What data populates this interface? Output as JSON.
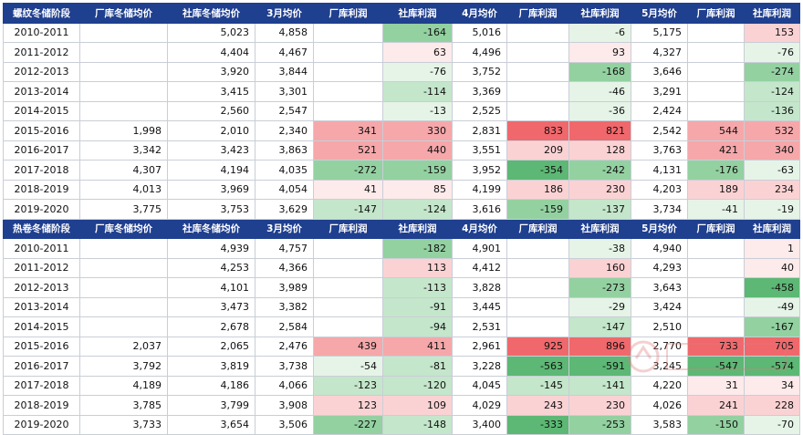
{
  "colors": {
    "header_bg": "#1f3f8f",
    "header_text": "#ffffff",
    "red_strong": "#f0686c",
    "red_mid": "#f6a7aa",
    "red_light": "#fbd2d4",
    "red_faint": "#fdeaea",
    "green_strong": "#5cb874",
    "green_mid": "#93d1a1",
    "green_light": "#c4e6cb",
    "green_faint": "#e5f4e7"
  },
  "rebar": {
    "headers": [
      "螺纹冬储阶段",
      "厂库冬储均价",
      "社库冬储均价",
      "3月均价",
      "厂库利润",
      "社库利润",
      "4月均价",
      "厂库利润",
      "社库利润",
      "5月均价",
      "厂库利润",
      "社库利润"
    ],
    "rows": [
      [
        "2010-2011",
        "",
        "5,023",
        "4,858",
        "",
        "-164",
        "5,016",
        "",
        "-6",
        "5,175",
        "",
        "153"
      ],
      [
        "2011-2012",
        "",
        "4,404",
        "4,467",
        "",
        "63",
        "4,496",
        "",
        "93",
        "4,327",
        "",
        "-76"
      ],
      [
        "2012-2013",
        "",
        "3,920",
        "3,844",
        "",
        "-76",
        "3,752",
        "",
        "-168",
        "3,646",
        "",
        "-274"
      ],
      [
        "2013-2014",
        "",
        "3,415",
        "3,301",
        "",
        "-114",
        "3,369",
        "",
        "-46",
        "3,291",
        "",
        "-124"
      ],
      [
        "2014-2015",
        "",
        "2,560",
        "2,547",
        "",
        "-13",
        "2,525",
        "",
        "-36",
        "2,424",
        "",
        "-136"
      ],
      [
        "2015-2016",
        "1,998",
        "2,010",
        "2,340",
        "341",
        "330",
        "2,831",
        "833",
        "821",
        "2,542",
        "544",
        "532"
      ],
      [
        "2016-2017",
        "3,342",
        "3,423",
        "3,863",
        "521",
        "440",
        "3,551",
        "209",
        "128",
        "3,763",
        "421",
        "340"
      ],
      [
        "2017-2018",
        "4,307",
        "4,194",
        "4,035",
        "-272",
        "-159",
        "3,952",
        "-354",
        "-242",
        "4,131",
        "-176",
        "-63"
      ],
      [
        "2018-2019",
        "4,013",
        "3,969",
        "4,054",
        "41",
        "85",
        "4,199",
        "186",
        "230",
        "4,203",
        "189",
        "234"
      ],
      [
        "2019-2020",
        "3,775",
        "3,753",
        "3,629",
        "-147",
        "-124",
        "3,616",
        "-159",
        "-137",
        "3,734",
        "-41",
        "-19"
      ]
    ]
  },
  "hotcoil": {
    "headers": [
      "热卷冬储阶段",
      "厂库冬储均价",
      "社库冬储均价",
      "3月均价",
      "厂库利润",
      "社库利润",
      "4月均价",
      "厂库利润",
      "社库利润",
      "5月均价",
      "厂库利润",
      "社库利润"
    ],
    "rows": [
      [
        "2010-2011",
        "",
        "4,939",
        "4,757",
        "",
        "-182",
        "4,901",
        "",
        "-38",
        "4,940",
        "",
        "1"
      ],
      [
        "2011-2012",
        "",
        "4,253",
        "4,366",
        "",
        "113",
        "4,412",
        "",
        "160",
        "4,293",
        "",
        "40"
      ],
      [
        "2012-2013",
        "",
        "4,101",
        "3,989",
        "",
        "-113",
        "3,828",
        "",
        "-273",
        "3,643",
        "",
        "-458"
      ],
      [
        "2013-2014",
        "",
        "3,473",
        "3,382",
        "",
        "-91",
        "3,445",
        "",
        "-29",
        "3,424",
        "",
        "-49"
      ],
      [
        "2014-2015",
        "",
        "2,678",
        "2,584",
        "",
        "-94",
        "2,531",
        "",
        "-147",
        "2,510",
        "",
        "-167"
      ],
      [
        "2015-2016",
        "2,037",
        "2,065",
        "2,476",
        "439",
        "411",
        "2,961",
        "925",
        "896",
        "2,770",
        "733",
        "705"
      ],
      [
        "2016-2017",
        "3,792",
        "3,819",
        "3,738",
        "-54",
        "-81",
        "3,228",
        "-563",
        "-591",
        "3,245",
        "-547",
        "-574"
      ],
      [
        "2017-2018",
        "4,189",
        "4,186",
        "4,066",
        "-123",
        "-120",
        "4,045",
        "-145",
        "-141",
        "4,220",
        "31",
        "34"
      ],
      [
        "2018-2019",
        "3,785",
        "3,799",
        "3,908",
        "123",
        "109",
        "4,029",
        "243",
        "230",
        "4,026",
        "241",
        "228"
      ],
      [
        "2019-2020",
        "3,733",
        "3,654",
        "3,506",
        "-227",
        "-148",
        "3,400",
        "-333",
        "-253",
        "3,583",
        "-150",
        "-70"
      ]
    ]
  }
}
